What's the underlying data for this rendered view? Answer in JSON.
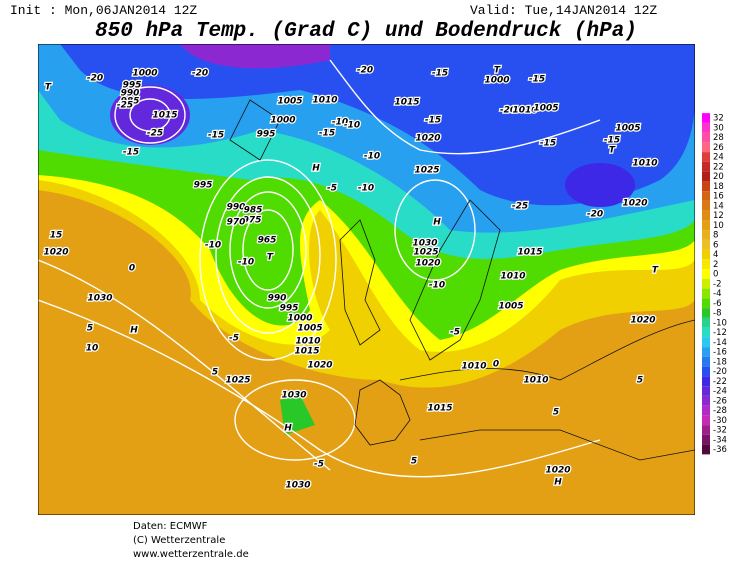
{
  "header": {
    "init": "Init : Mon,06JAN2014 12Z",
    "valid": "Valid: Tue,14JAN2014 12Z",
    "title": "850 hPa Temp. (Grad C) und Bodendruck (hPa)"
  },
  "scale": {
    "ticks": [
      32,
      30,
      28,
      26,
      24,
      22,
      20,
      18,
      16,
      14,
      12,
      10,
      8,
      6,
      4,
      2,
      0,
      -2,
      -4,
      -6,
      -8,
      -10,
      -12,
      -14,
      -16,
      -18,
      -20,
      -22,
      -24,
      -26,
      -28,
      -30,
      -32,
      -34,
      -36
    ],
    "colors": [
      "#ff00ff",
      "#ff33cc",
      "#ff4da6",
      "#ff6680",
      "#e03c3c",
      "#c82828",
      "#b01e1e",
      "#c84614",
      "#d46414",
      "#dc7814",
      "#e08c14",
      "#e4a014",
      "#e8b01e",
      "#ecbe28",
      "#f0d000",
      "#f8e800",
      "#ffff00",
      "#c8f000",
      "#8ce600",
      "#50dc00",
      "#28c828",
      "#28d28c",
      "#28dcc8",
      "#28c8f0",
      "#28a0f0",
      "#2878f0",
      "#2850f0",
      "#3c28e6",
      "#6428dc",
      "#8c28d2",
      "#b428c8",
      "#c828b4",
      "#a01e8c",
      "#781464",
      "#500a3c"
    ]
  },
  "map": {
    "labels": [
      "1000",
      "995",
      "990",
      "985",
      "1015",
      "-25",
      "-25",
      "-20",
      "-20",
      "-20",
      "-15",
      "1005",
      "1010",
      "1015",
      "-10",
      "1000",
      "995",
      "-15",
      "-15",
      "-10",
      "1020",
      "-15",
      "-10",
      "-15",
      "995",
      "990",
      "985",
      "975",
      "970",
      "965",
      "T",
      "-10",
      "-10",
      "990",
      "995",
      "1000",
      "1005",
      "1010",
      "1015",
      "-5",
      "1020",
      "1025",
      "1030",
      "H",
      "1030",
      "0",
      "1030",
      "H",
      "5",
      "1020",
      "15",
      "H",
      "-5",
      "-10",
      "1025",
      "H",
      "1030",
      "1025",
      "1020",
      "1015",
      "1010",
      "1005",
      "-10",
      "-5",
      "1010",
      "1010",
      "1015",
      "-5",
      "5",
      "1020",
      "H",
      "-20",
      "1020",
      "-25",
      "1010",
      "1005",
      "-15",
      "-15",
      "-20",
      "1010",
      "1005",
      "1000",
      "T",
      "-15",
      "T",
      "T",
      "1020",
      "T",
      "5",
      "5",
      "0",
      "5",
      "10"
    ]
  },
  "footer": {
    "lines": [
      "Daten: ECMWF",
      "(C) Wetterzentrale",
      "www.wetterzentrale.de"
    ]
  }
}
